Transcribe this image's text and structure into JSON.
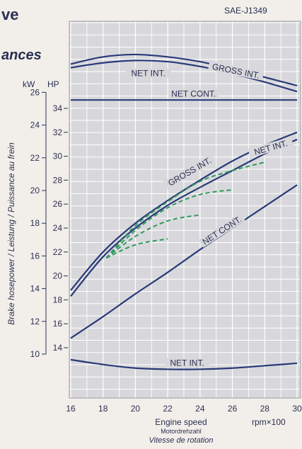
{
  "header": {
    "title_fragment": "ve",
    "subtitle_fragment": "ances",
    "standard": "SAE-J1349"
  },
  "axes": {
    "kw_unit": "kW",
    "hp_unit": "HP",
    "ylabel": "Brake hosepower / Leistung / Puissance au frein",
    "xlabel": "Engine speed",
    "xlabel_de": "Motordrehzahl",
    "xlabel_fr": "Vitesse de rotation",
    "xunit": "rpm×100"
  },
  "colors": {
    "curve": "#2a3a78",
    "partial": "#2e9a5a",
    "grid_fill": "#d8d8dc",
    "grid_line": "#ffffff",
    "text": "#2a2f52"
  },
  "chart_data": {
    "type": "line",
    "xlim": [
      16,
      30
    ],
    "x_ticks": [
      16,
      18,
      20,
      22,
      24,
      26,
      28,
      30
    ],
    "x_tick_labels": [
      "16",
      "18",
      "20",
      "22",
      "24",
      "26",
      "28",
      "30"
    ],
    "hp_axis": {
      "range": [
        14,
        34
      ],
      "ticks": [
        14,
        16,
        18,
        20,
        22,
        24,
        26,
        28,
        30,
        32,
        34
      ],
      "labels": [
        "14",
        "16",
        "18",
        "20",
        "22",
        "24",
        "26",
        "28",
        "30",
        "32",
        "34"
      ]
    },
    "kw_axis": {
      "range": [
        10,
        26
      ],
      "ticks": [
        10,
        12,
        14,
        16,
        18,
        20,
        22,
        24,
        26
      ],
      "labels": [
        "10",
        "12",
        "14",
        "16",
        "18",
        "20",
        "22",
        "24",
        "26"
      ]
    },
    "series": [
      {
        "name": "GROSS INT.",
        "group": "power",
        "x": [
          16,
          18,
          20,
          22,
          24,
          26,
          28,
          30
        ],
        "y": [
          18.8,
          22.0,
          24.4,
          26.3,
          28.0,
          29.6,
          30.9,
          32.0
        ]
      },
      {
        "name": "NET INT.",
        "group": "power",
        "x": [
          16,
          18,
          20,
          22,
          24,
          26,
          28,
          30
        ],
        "y": [
          18.3,
          21.6,
          24.0,
          25.9,
          27.4,
          28.8,
          30.2,
          31.4
        ]
      },
      {
        "name": "NET CONT.",
        "group": "power",
        "x": [
          16,
          18,
          20,
          22,
          24,
          26,
          28,
          30
        ],
        "y": [
          14.8,
          16.6,
          18.5,
          20.3,
          22.2,
          24.0,
          25.8,
          27.6
        ]
      },
      {
        "name": "GROSS INT.",
        "group": "torque",
        "x": [
          16,
          18,
          20,
          22,
          24,
          26,
          28,
          30
        ],
        "y": [
          37.7,
          38.3,
          38.5,
          38.3,
          37.9,
          37.3,
          36.6,
          35.9
        ]
      },
      {
        "name": "NET INT.",
        "group": "torque",
        "x": [
          16,
          18,
          20,
          22,
          24,
          26,
          28,
          30
        ],
        "y": [
          37.4,
          37.8,
          38.0,
          37.9,
          37.5,
          36.9,
          36.2,
          35.4
        ]
      },
      {
        "name": "NET CONT.",
        "group": "torque",
        "x": [
          16,
          30
        ],
        "y": [
          34.7,
          34.7
        ]
      },
      {
        "name": "NET INT.",
        "group": "fuel",
        "x": [
          16,
          18,
          20,
          22,
          24,
          26,
          28,
          30
        ],
        "y": [
          13.0,
          12.6,
          12.3,
          12.2,
          12.2,
          12.3,
          12.5,
          12.7
        ]
      }
    ],
    "partial_load": [
      {
        "x": [
          18.2,
          20,
          22,
          24,
          26,
          28
        ],
        "y": [
          21.5,
          24.2,
          26.2,
          27.9,
          28.8,
          29.5
        ]
      },
      {
        "x": [
          18.2,
          20,
          22,
          24,
          26
        ],
        "y": [
          21.5,
          23.8,
          25.7,
          26.8,
          27.2
        ]
      },
      {
        "x": [
          18.2,
          20,
          22,
          24
        ],
        "y": [
          21.5,
          23.3,
          24.6,
          25.1
        ]
      },
      {
        "x": [
          18.2,
          20,
          22
        ],
        "y": [
          21.5,
          22.6,
          23.1
        ]
      }
    ],
    "curve_labels": [
      {
        "text": "GROSS INT.",
        "x": 26.2,
        "y": 37.0,
        "angle": 11
      },
      {
        "text": "NET INT.",
        "x": 20.8,
        "y": 36.8,
        "angle": 0
      },
      {
        "text": "NET CONT.",
        "x": 23.6,
        "y": 35.1,
        "angle": 0
      },
      {
        "text": "GROSS INT.",
        "x": 23.4,
        "y": 28.6,
        "angle": -30
      },
      {
        "text": "NET INT.",
        "x": 28.4,
        "y": 30.6,
        "angle": -16
      },
      {
        "text": "NET CONT.",
        "x": 25.4,
        "y": 23.7,
        "angle": -33
      },
      {
        "text": "NET INT.",
        "x": 23.2,
        "y": 12.6,
        "angle": 0
      }
    ]
  }
}
